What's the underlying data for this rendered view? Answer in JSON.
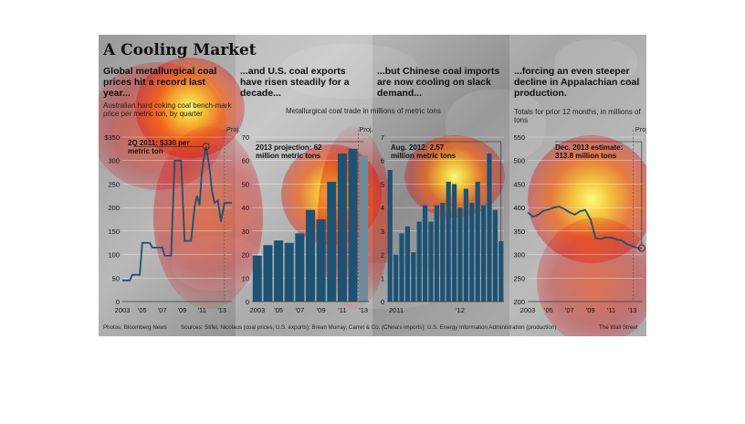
{
  "title": "A Cooling Market",
  "shared_subtitle": "Metallurgical coal trade in millions of metric tons",
  "footer": {
    "photo": "Photos: Bloomberg News",
    "sources": "Sources: Stifel, Nicolaus (coal prices, U.S. exports); Brean Murray, Carret & Co. (China's imports); U.S. Energy Information Administration (production)",
    "credit": "The Wall Street"
  },
  "chart_data": [
    {
      "type": "line",
      "headline": "Global metallurgical coal prices hit a record last year...",
      "subtitle": "Australian hard coking coal bench-mark price per metric ton, by quarter",
      "ylabel": "$350",
      "ylim": [
        0,
        350
      ],
      "yticks": [
        0,
        50,
        100,
        150,
        200,
        250,
        300,
        350
      ],
      "ytick_labels": [
        "0",
        "50",
        "100",
        "150",
        "200",
        "250",
        "300",
        "$350"
      ],
      "xticks": [
        2003,
        2005,
        2007,
        2009,
        2011,
        2013
      ],
      "xtick_labels": [
        "2003",
        "'05",
        "'07",
        "'09",
        "'11",
        "'13"
      ],
      "xlim": [
        2003,
        2014
      ],
      "proj_start": 2013.25,
      "proj_label": "Proj.",
      "annotation": {
        "text": "2Q 2011: $330 per metric ton",
        "x": 2011.4,
        "y": 330
      },
      "x": [
        2003,
        2003.75,
        2004,
        2004.75,
        2005,
        2005.75,
        2006,
        2007,
        2007.25,
        2007.9,
        2008.25,
        2008.9,
        2009.25,
        2009.9,
        2010.25,
        2010.5,
        2010.75,
        2011,
        2011.4,
        2011.75,
        2012,
        2012.25,
        2012.6,
        2012.9,
        2013.25,
        2013.6,
        2014
      ],
      "y": [
        45,
        45,
        57,
        57,
        125,
        125,
        115,
        115,
        98,
        98,
        300,
        300,
        129,
        129,
        200,
        225,
        205,
        280,
        330,
        285,
        235,
        210,
        215,
        170,
        210,
        210,
        210
      ]
    },
    {
      "type": "bar",
      "headline": "...and U.S. coal exports have risen steadily for a decade...",
      "ylim": [
        0,
        70
      ],
      "yticks": [
        0,
        10,
        20,
        30,
        40,
        50,
        60,
        70
      ],
      "xtick_labels": [
        "2003",
        "'05",
        "'07",
        "'09",
        "'11",
        "'13"
      ],
      "proj_label": "Proj.",
      "annotation": {
        "text": "2013 projection: 62 million metric tons"
      },
      "categories": [
        "2003",
        "2004",
        "2005",
        "2006",
        "2007",
        "2008",
        "2009",
        "2010",
        "2011",
        "2012",
        "2013"
      ],
      "values": [
        19.5,
        24,
        26,
        25,
        29,
        39,
        35,
        51,
        63,
        65,
        62
      ],
      "projected": [
        false,
        false,
        false,
        false,
        false,
        false,
        false,
        false,
        false,
        false,
        true
      ]
    },
    {
      "type": "bar",
      "headline": "...but Chinese coal imports are now cooling on slack demand...",
      "ylim": [
        0,
        7
      ],
      "yticks": [
        0,
        1,
        2,
        3,
        4,
        5,
        6,
        7
      ],
      "xtick_labels": [
        "2011",
        "'12"
      ],
      "annotation": {
        "text": "Aug. 2012: 2.57 million metric tons"
      },
      "categories": [
        "2011-01",
        "2011-02",
        "2011-03",
        "2011-04",
        "2011-05",
        "2011-06",
        "2011-07",
        "2011-08",
        "2011-09",
        "2011-10",
        "2011-11",
        "2011-12",
        "2012-01",
        "2012-02",
        "2012-03",
        "2012-04",
        "2012-05",
        "2012-06",
        "2012-07",
        "2012-08"
      ],
      "values": [
        5.6,
        2.0,
        2.9,
        3.2,
        2.1,
        3.4,
        4.1,
        3.4,
        4.1,
        4.2,
        5.1,
        5.0,
        4.0,
        4.8,
        4.2,
        5.1,
        4.1,
        6.3,
        3.9,
        2.57
      ]
    },
    {
      "type": "line",
      "headline": "...forcing an even steeper decline in Appalachian coal production.",
      "subtitle": "Totals for prior 12 months, in millions of tons",
      "ylim": [
        200,
        550
      ],
      "yticks": [
        200,
        250,
        300,
        350,
        400,
        450,
        500,
        550
      ],
      "xticks": [
        2003,
        2005,
        2007,
        2009,
        2011,
        2013
      ],
      "xtick_labels": [
        "2003",
        "'05",
        "'07",
        "'09",
        "'11",
        "'13"
      ],
      "xlim": [
        2003,
        2014
      ],
      "proj_start": 2013.1,
      "proj_label": "Proj.",
      "annotation": {
        "text": "Dec. 2013 estimate: 313.8 million tons",
        "x": 2013.9,
        "y": 313.8
      },
      "x": [
        2003,
        2003.5,
        2004,
        2004.5,
        2005,
        2005.5,
        2006,
        2006.5,
        2007,
        2007.5,
        2008,
        2008.5,
        2009,
        2009.5,
        2010,
        2010.5,
        2011,
        2011.5,
        2012,
        2012.5,
        2013,
        2013.5,
        2013.9
      ],
      "y": [
        390,
        380,
        385,
        393,
        396,
        400,
        402,
        397,
        390,
        385,
        392,
        395,
        375,
        335,
        333,
        337,
        336,
        332,
        330,
        322,
        318,
        314,
        313.8
      ]
    }
  ],
  "colors": {
    "bar": "#1c5274",
    "bar_proj": "#6f8ba0",
    "line": "#1c5274",
    "heat": "#ff3300"
  }
}
